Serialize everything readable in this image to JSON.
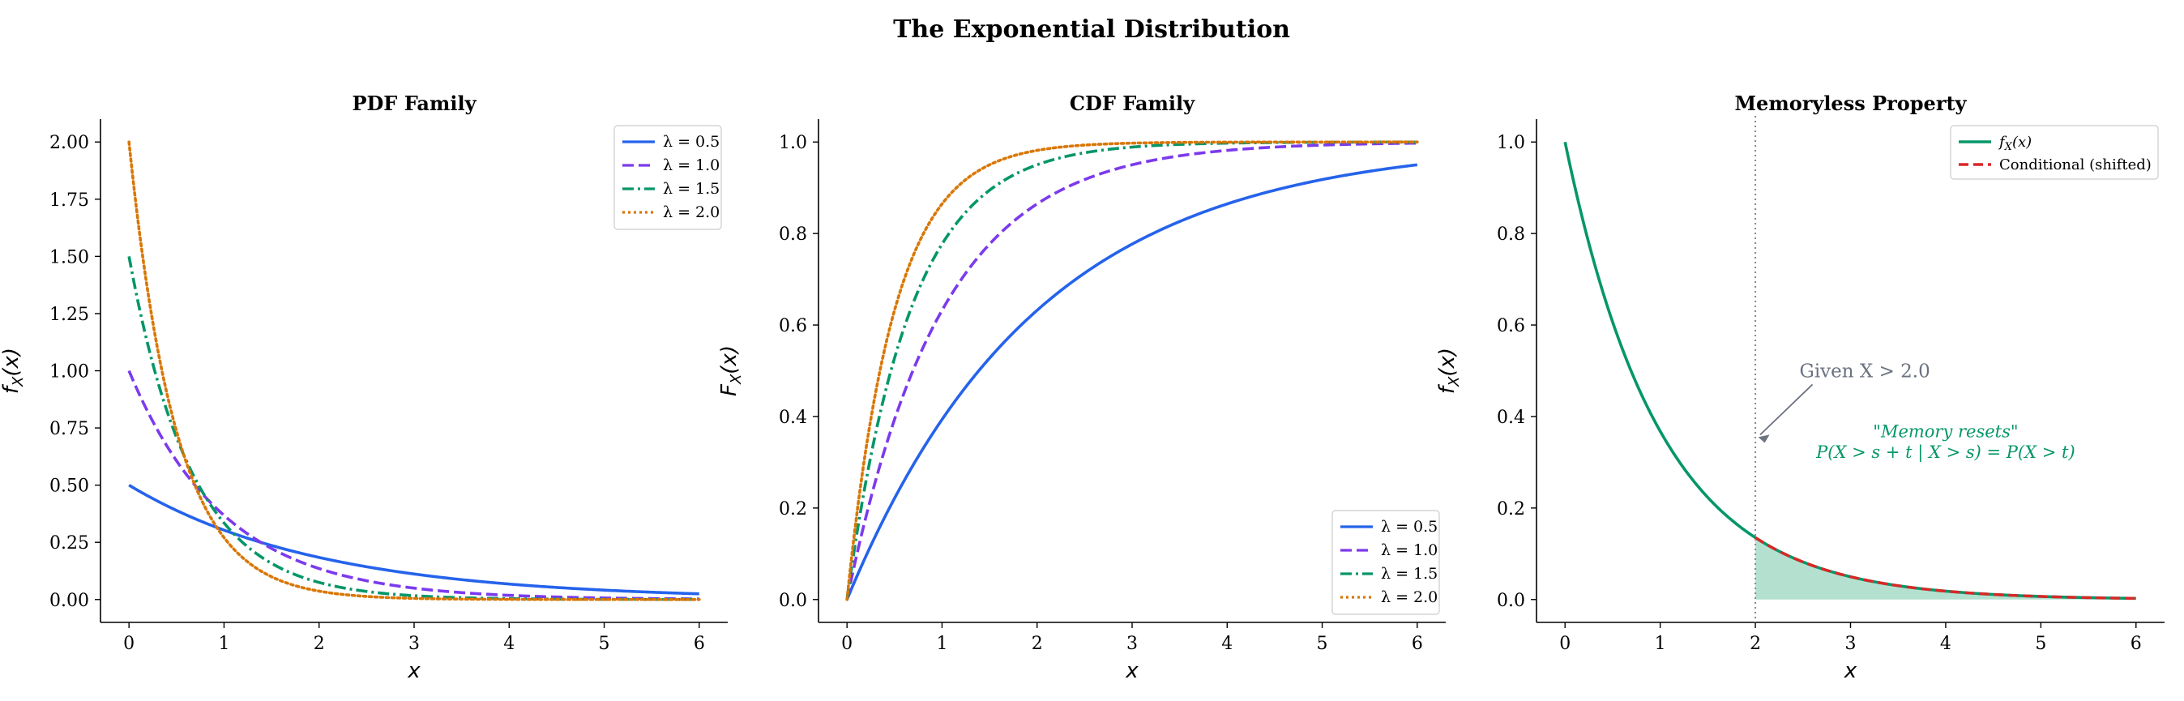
{
  "figure": {
    "title": "The Exponential Distribution"
  },
  "colors": {
    "lambda_0_5": "#2563eb",
    "lambda_1_0": "#7c3aed",
    "lambda_1_5": "#059669",
    "lambda_2_0": "#d97706",
    "memoryless_pdf": "#059669",
    "conditional": "#dc2626",
    "shade": "#a7dcc7",
    "annotation_gray": "#6b7280"
  },
  "chart_data": [
    {
      "type": "line",
      "title": "PDF Family",
      "xlabel": "x",
      "ylabel": "f_X(x)",
      "xlim": [
        -0.3,
        6.3
      ],
      "ylim": [
        -0.1,
        2.1
      ],
      "x_ticks": [
        "0",
        "1",
        "2",
        "3",
        "4",
        "5",
        "6"
      ],
      "y_ticks": [
        "0.00",
        "0.25",
        "0.50",
        "0.75",
        "1.00",
        "1.25",
        "1.50",
        "1.75",
        "2.00"
      ],
      "function": "pdf",
      "x_range": [
        0,
        6
      ],
      "legend_position": "top-right",
      "series": [
        {
          "name": "λ = 0.5",
          "lambda": 0.5,
          "style": "solid"
        },
        {
          "name": "λ = 1.0",
          "lambda": 1.0,
          "style": "dashed"
        },
        {
          "name": "λ = 1.5",
          "lambda": 1.5,
          "style": "dashdot"
        },
        {
          "name": "λ = 2.0",
          "lambda": 2.0,
          "style": "dotted"
        }
      ]
    },
    {
      "type": "line",
      "title": "CDF Family",
      "xlabel": "x",
      "ylabel": "F_X(x)",
      "xlim": [
        -0.3,
        6.3
      ],
      "ylim": [
        -0.05,
        1.05
      ],
      "x_ticks": [
        "0",
        "1",
        "2",
        "3",
        "4",
        "5",
        "6"
      ],
      "y_ticks": [
        "0.0",
        "0.2",
        "0.4",
        "0.6",
        "0.8",
        "1.0"
      ],
      "function": "cdf",
      "x_range": [
        0,
        6
      ],
      "legend_position": "bottom-right",
      "series": [
        {
          "name": "λ = 0.5",
          "lambda": 0.5,
          "style": "solid"
        },
        {
          "name": "λ = 1.0",
          "lambda": 1.0,
          "style": "dashed"
        },
        {
          "name": "λ = 1.5",
          "lambda": 1.5,
          "style": "dashdot"
        },
        {
          "name": "λ = 2.0",
          "lambda": 2.0,
          "style": "dotted"
        }
      ]
    },
    {
      "type": "area",
      "title": "Memoryless Property",
      "xlabel": "x",
      "ylabel": "f_X(x)",
      "xlim": [
        -0.3,
        6.3
      ],
      "ylim": [
        -0.05,
        1.05
      ],
      "x_ticks": [
        "0",
        "1",
        "2",
        "3",
        "4",
        "5",
        "6"
      ],
      "y_ticks": [
        "0.0",
        "0.2",
        "0.4",
        "0.6",
        "0.8",
        "1.0"
      ],
      "lambda": 1.0,
      "s": 2.0,
      "x_range": [
        0,
        6
      ],
      "legend_position": "top-right",
      "series": [
        {
          "name": "f_X(x)",
          "style": "solid"
        },
        {
          "name": "Conditional (shifted)",
          "style": "dashed"
        }
      ],
      "annotations": {
        "given": "Given X > 2.0",
        "memory_line1": "\"Memory resets\"",
        "memory_line2": "P(X > s + t | X > s) = P(X > t)"
      }
    }
  ]
}
